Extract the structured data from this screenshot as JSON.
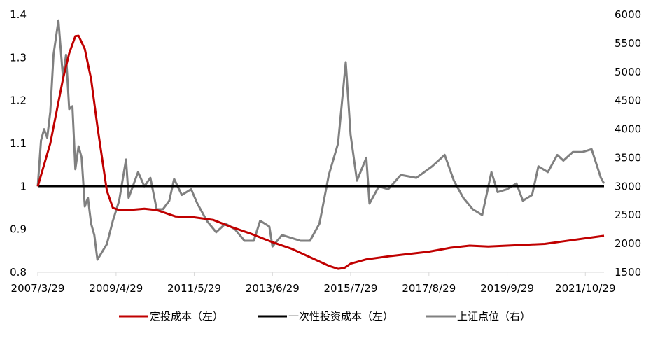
{
  "chart_data": {
    "type": "line",
    "x_ticks": [
      "2007/3/29",
      "2009/4/29",
      "2011/5/29",
      "2013/6/29",
      "2015/7/29",
      "2017/8/29",
      "2019/9/29",
      "2021/10/29"
    ],
    "x_range": [
      "2007/3/29",
      "2022/4/29"
    ],
    "y_left": {
      "min": 0.8,
      "max": 1.4,
      "ticks": [
        "0.8",
        "0.9",
        "1",
        "1.1",
        "1.2",
        "1.3",
        "1.4"
      ]
    },
    "y_right": {
      "min": 1500,
      "max": 6000,
      "ticks": [
        "1500",
        "2000",
        "2500",
        "3000",
        "3500",
        "4000",
        "4500",
        "5000",
        "5500",
        "6000"
      ]
    },
    "grid": false,
    "legend_position": "bottom",
    "series": [
      {
        "name": "定投成本（左）",
        "axis": "left",
        "color": "#c00000",
        "points": [
          [
            "2007/3/29",
            1.0
          ],
          [
            "2007/7/29",
            1.1
          ],
          [
            "2007/11/29",
            1.25
          ],
          [
            "2008/1/29",
            1.31
          ],
          [
            "2008/3/29",
            1.35
          ],
          [
            "2008/4/29",
            1.351
          ],
          [
            "2008/6/29",
            1.32
          ],
          [
            "2008/8/29",
            1.25
          ],
          [
            "2008/10/29",
            1.14
          ],
          [
            "2009/1/29",
            0.99
          ],
          [
            "2009/3/29",
            0.95
          ],
          [
            "2009/5/29",
            0.945
          ],
          [
            "2009/8/29",
            0.945
          ],
          [
            "2010/1/29",
            0.948
          ],
          [
            "2010/5/29",
            0.945
          ],
          [
            "2010/11/29",
            0.93
          ],
          [
            "2011/5/29",
            0.928
          ],
          [
            "2011/11/29",
            0.922
          ],
          [
            "2012/5/29",
            0.905
          ],
          [
            "2012/11/29",
            0.89
          ],
          [
            "2013/6/29",
            0.87
          ],
          [
            "2013/12/29",
            0.855
          ],
          [
            "2014/6/29",
            0.835
          ],
          [
            "2014/12/29",
            0.815
          ],
          [
            "2015/3/29",
            0.808
          ],
          [
            "2015/5/29",
            0.81
          ],
          [
            "2015/7/29",
            0.82
          ],
          [
            "2015/12/29",
            0.83
          ],
          [
            "2016/8/29",
            0.838
          ],
          [
            "2017/8/29",
            0.848
          ],
          [
            "2018/3/29",
            0.857
          ],
          [
            "2018/9/29",
            0.862
          ],
          [
            "2019/3/29",
            0.86
          ],
          [
            "2019/9/29",
            0.862
          ],
          [
            "2020/3/29",
            0.864
          ],
          [
            "2020/9/29",
            0.866
          ],
          [
            "2021/3/29",
            0.872
          ],
          [
            "2021/10/29",
            0.879
          ],
          [
            "2022/4/29",
            0.885
          ]
        ]
      },
      {
        "name": "一次性投资成本（左）",
        "axis": "left",
        "color": "#000000",
        "points": [
          [
            "2007/3/29",
            1.0
          ],
          [
            "2022/4/29",
            1.0
          ]
        ]
      },
      {
        "name": "上证点位（右）",
        "axis": "right",
        "color": "#808080",
        "points": [
          [
            "2007/3/29",
            3000
          ],
          [
            "2007/4/29",
            3800
          ],
          [
            "2007/5/29",
            4000
          ],
          [
            "2007/6/29",
            3850
          ],
          [
            "2007/7/29",
            4300
          ],
          [
            "2007/8/29",
            5300
          ],
          [
            "2007/10/16",
            5900
          ],
          [
            "2007/11/29",
            4900
          ],
          [
            "2007/12/29",
            5300
          ],
          [
            "2008/1/29",
            4350
          ],
          [
            "2008/2/29",
            4400
          ],
          [
            "2008/3/29",
            3300
          ],
          [
            "2008/4/29",
            3700
          ],
          [
            "2008/5/29",
            3500
          ],
          [
            "2008/6/29",
            2650
          ],
          [
            "2008/7/29",
            2800
          ],
          [
            "2008/8/29",
            2350
          ],
          [
            "2008/9/29",
            2150
          ],
          [
            "2008/10/29",
            1720
          ],
          [
            "2008/12/29",
            1900
          ],
          [
            "2009/1/29",
            1990
          ],
          [
            "2009/3/29",
            2400
          ],
          [
            "2009/5/29",
            2750
          ],
          [
            "2009/8/4",
            3470
          ],
          [
            "2009/8/29",
            2800
          ],
          [
            "2009/11/29",
            3250
          ],
          [
            "2010/1/29",
            3000
          ],
          [
            "2010/3/29",
            3150
          ],
          [
            "2010/5/29",
            2600
          ],
          [
            "2010/7/29",
            2600
          ],
          [
            "2010/9/29",
            2750
          ],
          [
            "2010/11/15",
            3130
          ],
          [
            "2011/1/29",
            2850
          ],
          [
            "2011/4/29",
            2950
          ],
          [
            "2011/6/29",
            2700
          ],
          [
            "2011/9/29",
            2400
          ],
          [
            "2011/12/29",
            2200
          ],
          [
            "2012/3/29",
            2350
          ],
          [
            "2012/6/29",
            2250
          ],
          [
            "2012/9/29",
            2050
          ],
          [
            "2012/12/29",
            2050
          ],
          [
            "2013/2/29",
            2400
          ],
          [
            "2013/5/29",
            2300
          ],
          [
            "2013/6/29",
            1950
          ],
          [
            "2013/9/29",
            2150
          ],
          [
            "2013/12/29",
            2100
          ],
          [
            "2014/3/29",
            2050
          ],
          [
            "2014/6/29",
            2050
          ],
          [
            "2014/9/29",
            2350
          ],
          [
            "2014/12/29",
            3200
          ],
          [
            "2015/3/29",
            3750
          ],
          [
            "2015/6/12",
            5170
          ],
          [
            "2015/7/29",
            3900
          ],
          [
            "2015/9/29",
            3100
          ],
          [
            "2015/12/29",
            3500
          ],
          [
            "2016/1/29",
            2700
          ],
          [
            "2016/4/29",
            3000
          ],
          [
            "2016/7/29",
            2950
          ],
          [
            "2016/11/29",
            3200
          ],
          [
            "2017/4/29",
            3150
          ],
          [
            "2017/9/29",
            3350
          ],
          [
            "2018/1/29",
            3550
          ],
          [
            "2018/4/29",
            3100
          ],
          [
            "2018/7/29",
            2800
          ],
          [
            "2018/10/29",
            2600
          ],
          [
            "2019/1/29",
            2500
          ],
          [
            "2019/4/29",
            3250
          ],
          [
            "2019/6/29",
            2900
          ],
          [
            "2019/9/29",
            2950
          ],
          [
            "2019/12/29",
            3050
          ],
          [
            "2020/2/29",
            2750
          ],
          [
            "2020/5/29",
            2850
          ],
          [
            "2020/7/29",
            3350
          ],
          [
            "2020/10/29",
            3250
          ],
          [
            "2021/1/29",
            3550
          ],
          [
            "2021/3/29",
            3450
          ],
          [
            "2021/6/29",
            3600
          ],
          [
            "2021/9/29",
            3600
          ],
          [
            "2021/12/29",
            3650
          ],
          [
            "2022/3/29",
            3150
          ],
          [
            "2022/4/29",
            3050
          ]
        ]
      }
    ]
  }
}
